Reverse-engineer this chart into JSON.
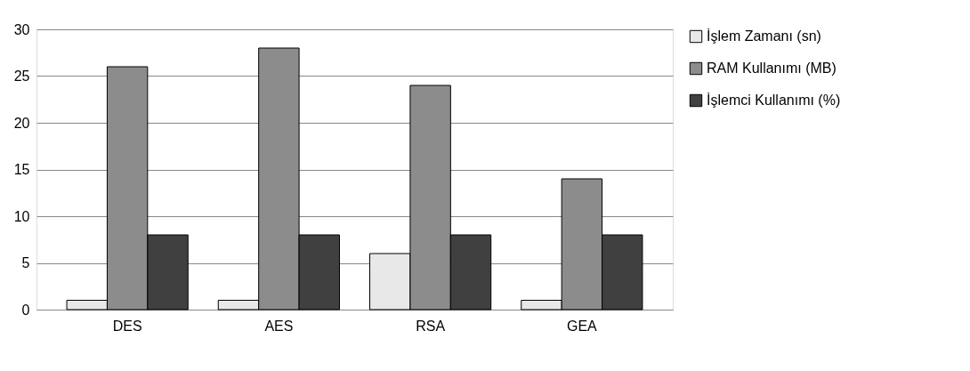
{
  "chart_data": {
    "type": "bar",
    "categories": [
      "DES",
      "AES",
      "RSA",
      "GEA"
    ],
    "series": [
      {
        "name": "İşlem Zamanı (sn)",
        "color": "#e8e8e8",
        "values": [
          1,
          1,
          6,
          1
        ]
      },
      {
        "name": "RAM Kullanımı (MB)",
        "color": "#8c8c8c",
        "values": [
          26,
          28,
          24,
          14
        ]
      },
      {
        "name": "İşlemci Kullanımı (%)",
        "color": "#404040",
        "values": [
          8,
          8,
          8,
          8
        ]
      }
    ],
    "ylim": [
      0,
      30
    ],
    "yticks": [
      0,
      5,
      10,
      15,
      20,
      25,
      30
    ],
    "grid": "y",
    "legend": "right"
  }
}
